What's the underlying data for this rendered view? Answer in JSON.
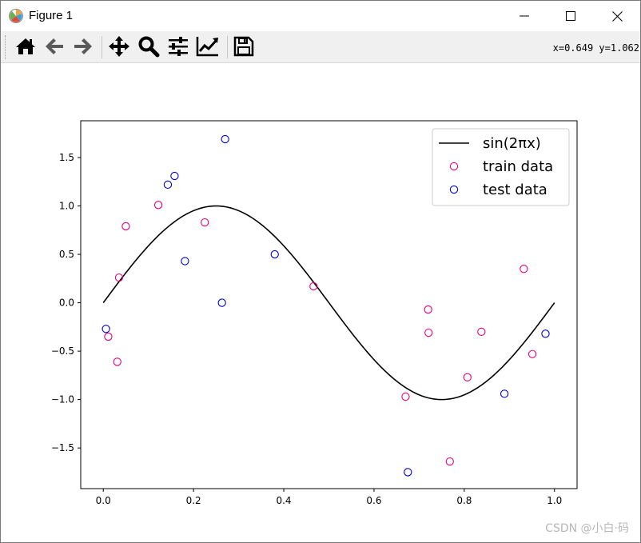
{
  "window": {
    "title": "Figure 1",
    "app_icon": "matplotlib-icon",
    "controls": {
      "minimize": "minimize-icon",
      "maximize": "maximize-icon",
      "close": "close-icon"
    }
  },
  "toolbar": {
    "buttons": [
      {
        "name": "home",
        "icon": "home-icon"
      },
      {
        "name": "back",
        "icon": "arrow-left-icon"
      },
      {
        "name": "forward",
        "icon": "arrow-right-icon"
      },
      {
        "name": "pan",
        "icon": "move-icon"
      },
      {
        "name": "zoom",
        "icon": "magnifier-icon"
      },
      {
        "name": "subplots",
        "icon": "sliders-icon"
      },
      {
        "name": "edit-axis",
        "icon": "line-chart-icon"
      },
      {
        "name": "save",
        "icon": "floppy-icon"
      }
    ],
    "coords": "x=0.649 y=1.062"
  },
  "watermark": "CSDN @小白·码",
  "colors": {
    "line": "#000000",
    "train": "#e6007e",
    "test": "#0000d8",
    "toolbar_bg": "#f0f0f0"
  },
  "chart_data": {
    "type": "scatter",
    "title": "",
    "xlabel": "",
    "ylabel": "",
    "xlim": [
      -0.05,
      1.05
    ],
    "ylim": [
      -1.92,
      1.88
    ],
    "xticks": [
      0.0,
      0.2,
      0.4,
      0.6,
      0.8,
      1.0
    ],
    "xtick_labels": [
      "0.0",
      "0.2",
      "0.4",
      "0.6",
      "0.8",
      "1.0"
    ],
    "yticks": [
      -1.5,
      -1.0,
      -0.5,
      0.0,
      0.5,
      1.0,
      1.5
    ],
    "ytick_labels": [
      "−1.5",
      "−1.0",
      "−0.5",
      "0.0",
      "0.5",
      "1.0",
      "1.5"
    ],
    "grid": false,
    "legend": {
      "position": "top-right",
      "entries": [
        {
          "label": "sin(2πx)",
          "kind": "line",
          "color": "#000000"
        },
        {
          "label": "train data",
          "kind": "marker",
          "color": "#e6007e"
        },
        {
          "label": "test data",
          "kind": "marker",
          "color": "#0000d8"
        }
      ]
    },
    "series": [
      {
        "name": "sin(2πx)",
        "kind": "line",
        "function": "sin(2πx)",
        "domain": [
          0,
          1
        ]
      },
      {
        "name": "train data",
        "kind": "scatter",
        "points": [
          [
            0.011,
            -0.35
          ],
          [
            0.031,
            -0.61
          ],
          [
            0.035,
            0.26
          ],
          [
            0.05,
            0.79
          ],
          [
            0.122,
            1.01
          ],
          [
            0.225,
            0.83
          ],
          [
            0.466,
            0.17
          ],
          [
            0.67,
            -0.97
          ],
          [
            0.72,
            -0.07
          ],
          [
            0.721,
            -0.31
          ],
          [
            0.768,
            -1.64
          ],
          [
            0.807,
            -0.77
          ],
          [
            0.838,
            -0.3
          ],
          [
            0.932,
            0.35
          ],
          [
            0.951,
            -0.53
          ]
        ]
      },
      {
        "name": "test data",
        "kind": "scatter",
        "points": [
          [
            0.006,
            -0.27
          ],
          [
            0.143,
            1.22
          ],
          [
            0.158,
            1.31
          ],
          [
            0.181,
            0.43
          ],
          [
            0.263,
            0.0
          ],
          [
            0.27,
            1.69
          ],
          [
            0.38,
            0.5
          ],
          [
            0.675,
            -1.75
          ],
          [
            0.889,
            -0.94
          ],
          [
            0.98,
            -0.32
          ]
        ]
      }
    ]
  }
}
